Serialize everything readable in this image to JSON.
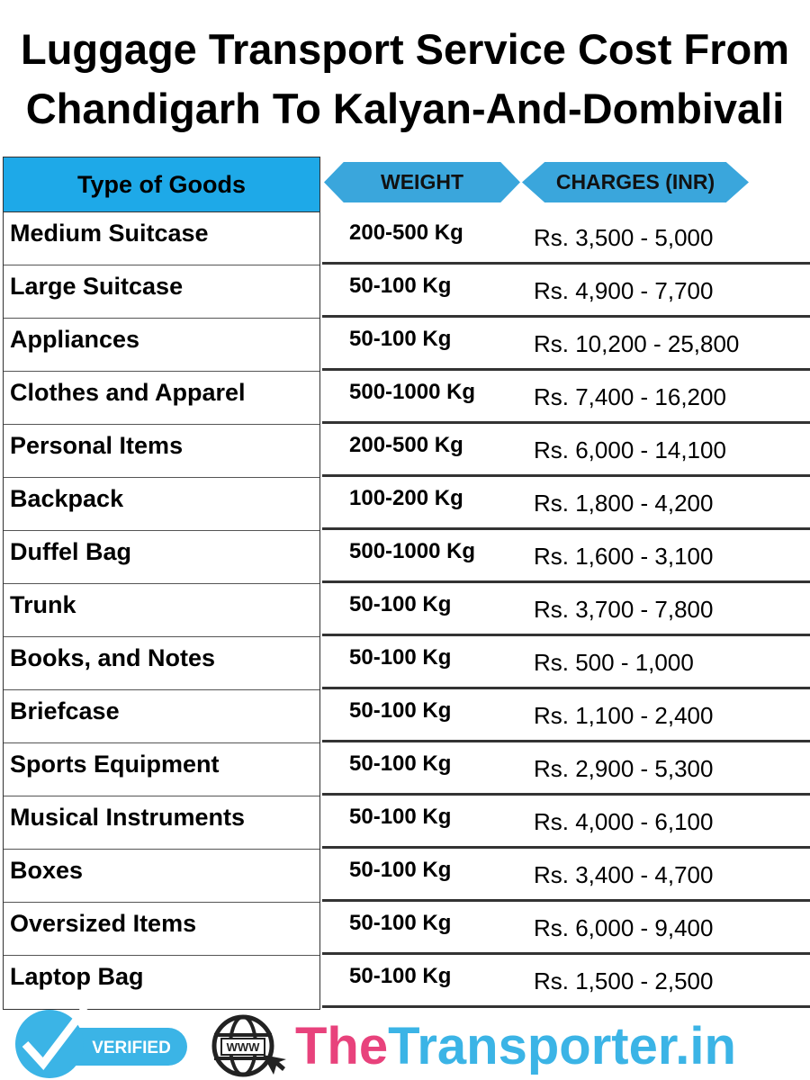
{
  "title": "Luggage Transport Service Cost From Chandigarh To Kalyan-And-Dombivali",
  "headers": {
    "goods": "Type of Goods",
    "weight": "WEIGHT",
    "charges": "CHARGES (INR)"
  },
  "colors": {
    "header_blue": "#1ea9e8",
    "hex_blue": "#3aa6dc",
    "brand_pink": "#e8427c",
    "brand_blue": "#3bb4e6"
  },
  "rows": [
    {
      "goods": "Medium Suitcase",
      "weight": "200-500 Kg",
      "charges": "Rs. 3,500 - 5,000"
    },
    {
      "goods": "Large Suitcase",
      "weight": "50-100 Kg",
      "charges": "Rs. 4,900 - 7,700"
    },
    {
      "goods": "Appliances",
      "weight": "50-100 Kg",
      "charges": "Rs. 10,200 - 25,800"
    },
    {
      "goods": "Clothes and Apparel",
      "weight": "500-1000 Kg",
      "charges": "Rs. 7,400 - 16,200"
    },
    {
      "goods": "Personal Items",
      "weight": "200-500 Kg",
      "charges": "Rs. 6,000 - 14,100"
    },
    {
      "goods": "Backpack",
      "weight": "100-200 Kg",
      "charges": "Rs. 1,800 - 4,200"
    },
    {
      "goods": "Duffel Bag",
      "weight": "500-1000 Kg",
      "charges": "Rs. 1,600 - 3,100"
    },
    {
      "goods": "Trunk",
      "weight": "50-100 Kg",
      "charges": "Rs. 3,700 - 7,800"
    },
    {
      "goods": "Books, and Notes",
      "weight": "50-100 Kg",
      "charges": "Rs. 500 - 1,000"
    },
    {
      "goods": "Briefcase",
      "weight": "50-100 Kg",
      "charges": "Rs. 1,100 - 2,400"
    },
    {
      "goods": "Sports Equipment",
      "weight": "50-100 Kg",
      "charges": "Rs. 2,900 - 5,300"
    },
    {
      "goods": "Musical Instruments",
      "weight": "50-100 Kg",
      "charges": "Rs. 4,000 - 6,100"
    },
    {
      "goods": "Boxes",
      "weight": "50-100 Kg",
      "charges": "Rs. 3,400 - 4,700"
    },
    {
      "goods": "Oversized Items",
      "weight": "50-100 Kg",
      "charges": "Rs. 6,000 - 9,400"
    },
    {
      "goods": "Laptop Bag",
      "weight": "50-100 Kg",
      "charges": "Rs. 1,500 - 2,500"
    }
  ],
  "footer": {
    "verified": "VERIFIED",
    "www": "WWW",
    "brand_the": "The",
    "brand_rest": "Transporter.in"
  }
}
